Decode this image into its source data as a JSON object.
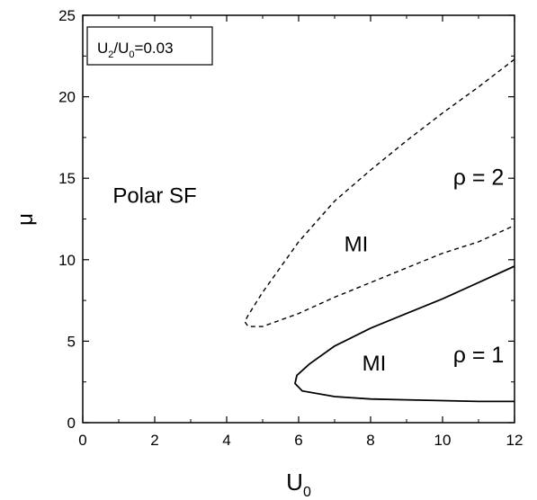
{
  "chart_data": {
    "type": "line",
    "title": "",
    "xlabel": {
      "main": "U",
      "sub": "0"
    },
    "ylabel": "μ",
    "xlim": [
      0,
      12
    ],
    "ylim": [
      0,
      25
    ],
    "x_ticks": [
      0,
      2,
      4,
      6,
      8,
      10,
      12
    ],
    "y_ticks": [
      0,
      5,
      10,
      15,
      20,
      25
    ],
    "grid": false,
    "legend": {
      "placement": "top-left",
      "parts": [
        {
          "text": "U",
          "sub": false
        },
        {
          "text": "2",
          "sub": true
        },
        {
          "text": "/U",
          "sub": false
        },
        {
          "text": "0",
          "sub": true
        },
        {
          "text": "=0.03",
          "sub": false
        }
      ]
    },
    "series": [
      {
        "style": "dashed",
        "x": [
          12.0,
          11.0,
          10.0,
          9.0,
          8.0,
          7.0,
          6.0,
          5.0,
          4.6,
          4.5,
          4.6,
          5.0,
          6.0,
          7.0,
          8.0,
          9.0,
          10.0,
          11.0,
          12.0
        ],
        "y": [
          22.3,
          20.6,
          19.0,
          17.3,
          15.5,
          13.6,
          11.1,
          8.0,
          6.6,
          6.2,
          5.9,
          5.9,
          6.7,
          7.7,
          8.6,
          9.5,
          10.4,
          11.1,
          12.1
        ]
      },
      {
        "style": "solid",
        "x": [
          12.0,
          11.0,
          10.0,
          9.0,
          8.0,
          7.0,
          6.3,
          5.95,
          5.9,
          6.1,
          7.0,
          8.0,
          9.0,
          10.0,
          11.0,
          12.0
        ],
        "y": [
          9.6,
          8.6,
          7.6,
          6.7,
          5.8,
          4.7,
          3.6,
          2.9,
          2.4,
          1.95,
          1.6,
          1.45,
          1.4,
          1.35,
          1.3,
          1.3
        ]
      }
    ],
    "annotations": [
      {
        "text": "Polar SF",
        "x": 2.0,
        "y": 13.5,
        "size": 24
      },
      {
        "text": "MI",
        "x": 7.6,
        "y": 10.5,
        "size": 24
      },
      {
        "text": "ρ = 2",
        "x": 11.0,
        "y": 14.6,
        "size": 25
      },
      {
        "text": "MI",
        "x": 8.1,
        "y": 3.2,
        "size": 24
      },
      {
        "text": "ρ = 1",
        "x": 11.0,
        "y": 3.7,
        "size": 25
      }
    ]
  }
}
